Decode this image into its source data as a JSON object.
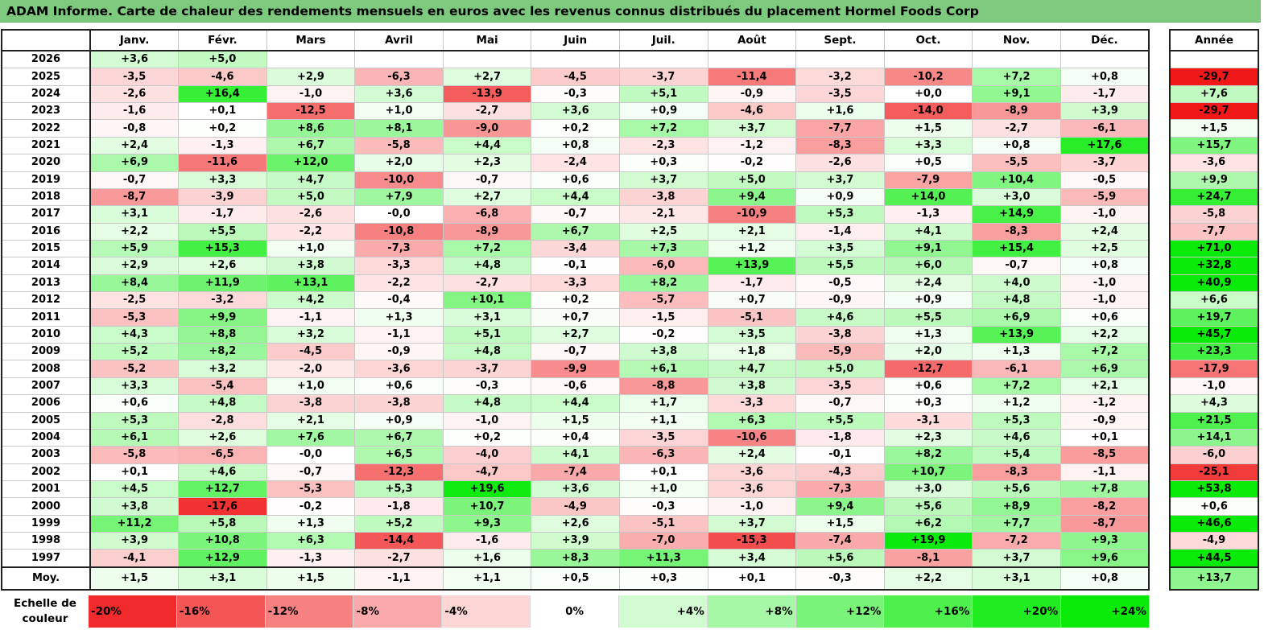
{
  "title": "ADAM Informe. Carte de chaleur des rendements mensuels en euros avec les revenus connus distribués du placement Hormel Foods Corp",
  "chart_data": {
    "type": "heatmap",
    "value_unit": "%",
    "columns": [
      "Janv.",
      "Févr.",
      "Mars",
      "Avril",
      "Mai",
      "Juin",
      "Juil.",
      "Août",
      "Sept.",
      "Oct.",
      "Nov.",
      "Déc."
    ],
    "annual_header": "Année",
    "rows": [
      {
        "year": "2026",
        "values": [
          "+3,6",
          "+5,0",
          "",
          "",
          "",
          "",
          "",
          "",
          "",
          "",
          "",
          ""
        ],
        "annual": ""
      },
      {
        "year": "2025",
        "values": [
          "-3,5",
          "-4,6",
          "+2,9",
          "-6,3",
          "+2,7",
          "-4,5",
          "-3,7",
          "-11,4",
          "-3,2",
          "-10,2",
          "+7,2",
          "+0,8"
        ],
        "annual": "-29,7"
      },
      {
        "year": "2024",
        "values": [
          "-2,6",
          "+16,4",
          "-1,0",
          "+3,6",
          "-13,9",
          "-0,3",
          "+5,1",
          "-0,9",
          "-3,5",
          "+0,0",
          "+9,1",
          "-1,7"
        ],
        "annual": "+7,6"
      },
      {
        "year": "2023",
        "values": [
          "-1,6",
          "+0,1",
          "-12,5",
          "+1,0",
          "-2,7",
          "+3,6",
          "+0,9",
          "-4,6",
          "+1,6",
          "-14,0",
          "-8,9",
          "+3,9"
        ],
        "annual": "-29,7"
      },
      {
        "year": "2022",
        "values": [
          "-0,8",
          "+0,2",
          "+8,6",
          "+8,1",
          "-9,0",
          "+0,2",
          "+7,2",
          "+3,7",
          "-7,7",
          "+1,5",
          "-2,7",
          "-6,1"
        ],
        "annual": "+1,5"
      },
      {
        "year": "2021",
        "values": [
          "+2,4",
          "-1,3",
          "+6,7",
          "-5,8",
          "+4,4",
          "+0,8",
          "-2,3",
          "-1,2",
          "-8,3",
          "+3,3",
          "+0,8",
          "+17,6"
        ],
        "annual": "+15,7"
      },
      {
        "year": "2020",
        "values": [
          "+6,9",
          "-11,6",
          "+12,0",
          "+2,0",
          "+2,3",
          "-2,4",
          "+0,3",
          "-0,2",
          "-2,6",
          "+0,5",
          "-5,5",
          "-3,7"
        ],
        "annual": "-3,6"
      },
      {
        "year": "2019",
        "values": [
          "-0,7",
          "+3,3",
          "+4,7",
          "-10,0",
          "-0,7",
          "+0,6",
          "+3,7",
          "+5,0",
          "+3,7",
          "-7,9",
          "+10,4",
          "-0,5"
        ],
        "annual": "+9,9"
      },
      {
        "year": "2018",
        "values": [
          "-8,7",
          "-3,9",
          "+5,0",
          "+7,9",
          "+2,7",
          "+4,4",
          "-3,8",
          "+9,4",
          "+0,9",
          "+14,0",
          "+3,0",
          "-5,9"
        ],
        "annual": "+24,7"
      },
      {
        "year": "2017",
        "values": [
          "+3,1",
          "-1,7",
          "-2,6",
          "-0,0",
          "-6,8",
          "-0,7",
          "-2,1",
          "-10,9",
          "+5,3",
          "-1,3",
          "+14,9",
          "-1,0"
        ],
        "annual": "-5,8"
      },
      {
        "year": "2016",
        "values": [
          "+2,2",
          "+5,5",
          "-2,2",
          "-10,8",
          "-8,9",
          "+6,7",
          "+2,5",
          "+2,1",
          "-1,4",
          "+4,1",
          "-8,3",
          "+2,4"
        ],
        "annual": "-7,7"
      },
      {
        "year": "2015",
        "values": [
          "+5,9",
          "+15,3",
          "+1,0",
          "-7,3",
          "+7,2",
          "-3,4",
          "+7,3",
          "+1,2",
          "+3,5",
          "+9,1",
          "+15,4",
          "+2,5"
        ],
        "annual": "+71,0"
      },
      {
        "year": "2014",
        "values": [
          "+2,9",
          "+2,6",
          "+3,8",
          "-3,3",
          "+4,8",
          "-0,1",
          "-6,0",
          "+13,9",
          "+5,5",
          "+6,0",
          "-0,7",
          "+0,8"
        ],
        "annual": "+32,8"
      },
      {
        "year": "2013",
        "values": [
          "+8,4",
          "+11,9",
          "+13,1",
          "-2,2",
          "-2,7",
          "-3,3",
          "+8,2",
          "-1,7",
          "-0,5",
          "+2,4",
          "+4,0",
          "-1,0"
        ],
        "annual": "+40,9"
      },
      {
        "year": "2012",
        "values": [
          "-2,5",
          "-3,2",
          "+4,2",
          "-0,4",
          "+10,1",
          "+0,2",
          "-5,7",
          "+0,7",
          "-0,9",
          "+0,9",
          "+4,8",
          "-1,0"
        ],
        "annual": "+6,6"
      },
      {
        "year": "2011",
        "values": [
          "-5,3",
          "+9,9",
          "-1,1",
          "+1,3",
          "+3,1",
          "+0,7",
          "-1,5",
          "-5,1",
          "+4,6",
          "+5,5",
          "+6,9",
          "+0,6"
        ],
        "annual": "+19,7"
      },
      {
        "year": "2010",
        "values": [
          "+4,3",
          "+8,8",
          "+3,2",
          "-1,1",
          "+5,1",
          "+2,7",
          "-0,2",
          "+3,5",
          "-3,8",
          "+1,3",
          "+13,9",
          "+2,2"
        ],
        "annual": "+45,7"
      },
      {
        "year": "2009",
        "values": [
          "+5,2",
          "+8,2",
          "-4,5",
          "-0,9",
          "+4,8",
          "-0,7",
          "+3,8",
          "+1,8",
          "-5,9",
          "+2,0",
          "+1,3",
          "+7,2"
        ],
        "annual": "+23,3"
      },
      {
        "year": "2008",
        "values": [
          "-5,2",
          "+3,2",
          "-2,0",
          "-3,6",
          "-3,7",
          "-9,9",
          "+6,1",
          "+4,7",
          "+5,0",
          "-12,7",
          "-6,1",
          "+6,9"
        ],
        "annual": "-17,9"
      },
      {
        "year": "2007",
        "values": [
          "+3,3",
          "-5,4",
          "+1,0",
          "+0,6",
          "-0,3",
          "-0,6",
          "-8,8",
          "+3,8",
          "-3,5",
          "+0,6",
          "+7,2",
          "+2,1"
        ],
        "annual": "-1,0"
      },
      {
        "year": "2006",
        "values": [
          "+0,6",
          "+4,8",
          "-3,8",
          "-3,8",
          "+4,8",
          "+4,4",
          "+1,7",
          "-3,3",
          "-0,7",
          "+0,3",
          "+1,2",
          "-1,2"
        ],
        "annual": "+4,3"
      },
      {
        "year": "2005",
        "values": [
          "+5,3",
          "-2,8",
          "+2,1",
          "+0,9",
          "-1,0",
          "+1,5",
          "+1,1",
          "+6,3",
          "+5,5",
          "-3,1",
          "+5,3",
          "-0,9"
        ],
        "annual": "+21,5"
      },
      {
        "year": "2004",
        "values": [
          "+6,1",
          "+2,6",
          "+7,6",
          "+6,7",
          "+0,2",
          "+0,4",
          "-3,5",
          "-10,6",
          "-1,8",
          "+2,3",
          "+4,6",
          "+0,1"
        ],
        "annual": "+14,1"
      },
      {
        "year": "2003",
        "values": [
          "-5,8",
          "-6,5",
          "-0,0",
          "+6,5",
          "-4,0",
          "+4,1",
          "-6,3",
          "+2,4",
          "-0,1",
          "+8,2",
          "+5,4",
          "-8,5"
        ],
        "annual": "-6,0"
      },
      {
        "year": "2002",
        "values": [
          "+0,1",
          "+4,6",
          "-0,7",
          "-12,3",
          "-4,7",
          "-7,4",
          "+0,1",
          "-3,6",
          "-4,3",
          "+10,7",
          "-8,3",
          "-1,1"
        ],
        "annual": "-25,1"
      },
      {
        "year": "2001",
        "values": [
          "+4,5",
          "+12,7",
          "-5,3",
          "+5,3",
          "+19,6",
          "+3,6",
          "+1,0",
          "-3,6",
          "-7,3",
          "+3,0",
          "+5,6",
          "+7,8"
        ],
        "annual": "+53,8"
      },
      {
        "year": "2000",
        "values": [
          "+3,8",
          "-17,6",
          "-0,2",
          "-1,8",
          "+10,7",
          "-4,9",
          "-0,3",
          "-1,0",
          "+9,4",
          "+5,6",
          "+8,9",
          "-8,2"
        ],
        "annual": "+0,6"
      },
      {
        "year": "1999",
        "values": [
          "+11,2",
          "+5,8",
          "+1,3",
          "+5,2",
          "+9,3",
          "+2,6",
          "-5,1",
          "+3,7",
          "+1,5",
          "+6,2",
          "+7,7",
          "-8,7"
        ],
        "annual": "+46,6"
      },
      {
        "year": "1998",
        "values": [
          "+3,9",
          "+10,8",
          "+6,3",
          "-14,4",
          "-1,6",
          "+3,9",
          "-7,0",
          "-15,3",
          "-7,4",
          "+19,9",
          "-7,2",
          "+9,3"
        ],
        "annual": "-4,9"
      },
      {
        "year": "1997",
        "values": [
          "-4,1",
          "+12,9",
          "-1,3",
          "-2,7",
          "+1,6",
          "+8,3",
          "+11,3",
          "+3,4",
          "+5,6",
          "-8,1",
          "+3,7",
          "+9,6"
        ],
        "annual": "+44,5"
      }
    ],
    "average": {
      "label": "Moy.",
      "values": [
        "+1,5",
        "+3,1",
        "+1,5",
        "-1,1",
        "+1,1",
        "+0,5",
        "+0,3",
        "+0,1",
        "-0,3",
        "+2,2",
        "+3,1",
        "+0,8"
      ],
      "annual": "+13,7"
    },
    "color_scale": {
      "label": "Echelle de couleur",
      "stops": [
        "-20%",
        "-16%",
        "-12%",
        "-8%",
        "-4%",
        "0%",
        "+4%",
        "+8%",
        "+12%",
        "+16%",
        "+20%",
        "+24%"
      ]
    }
  }
}
